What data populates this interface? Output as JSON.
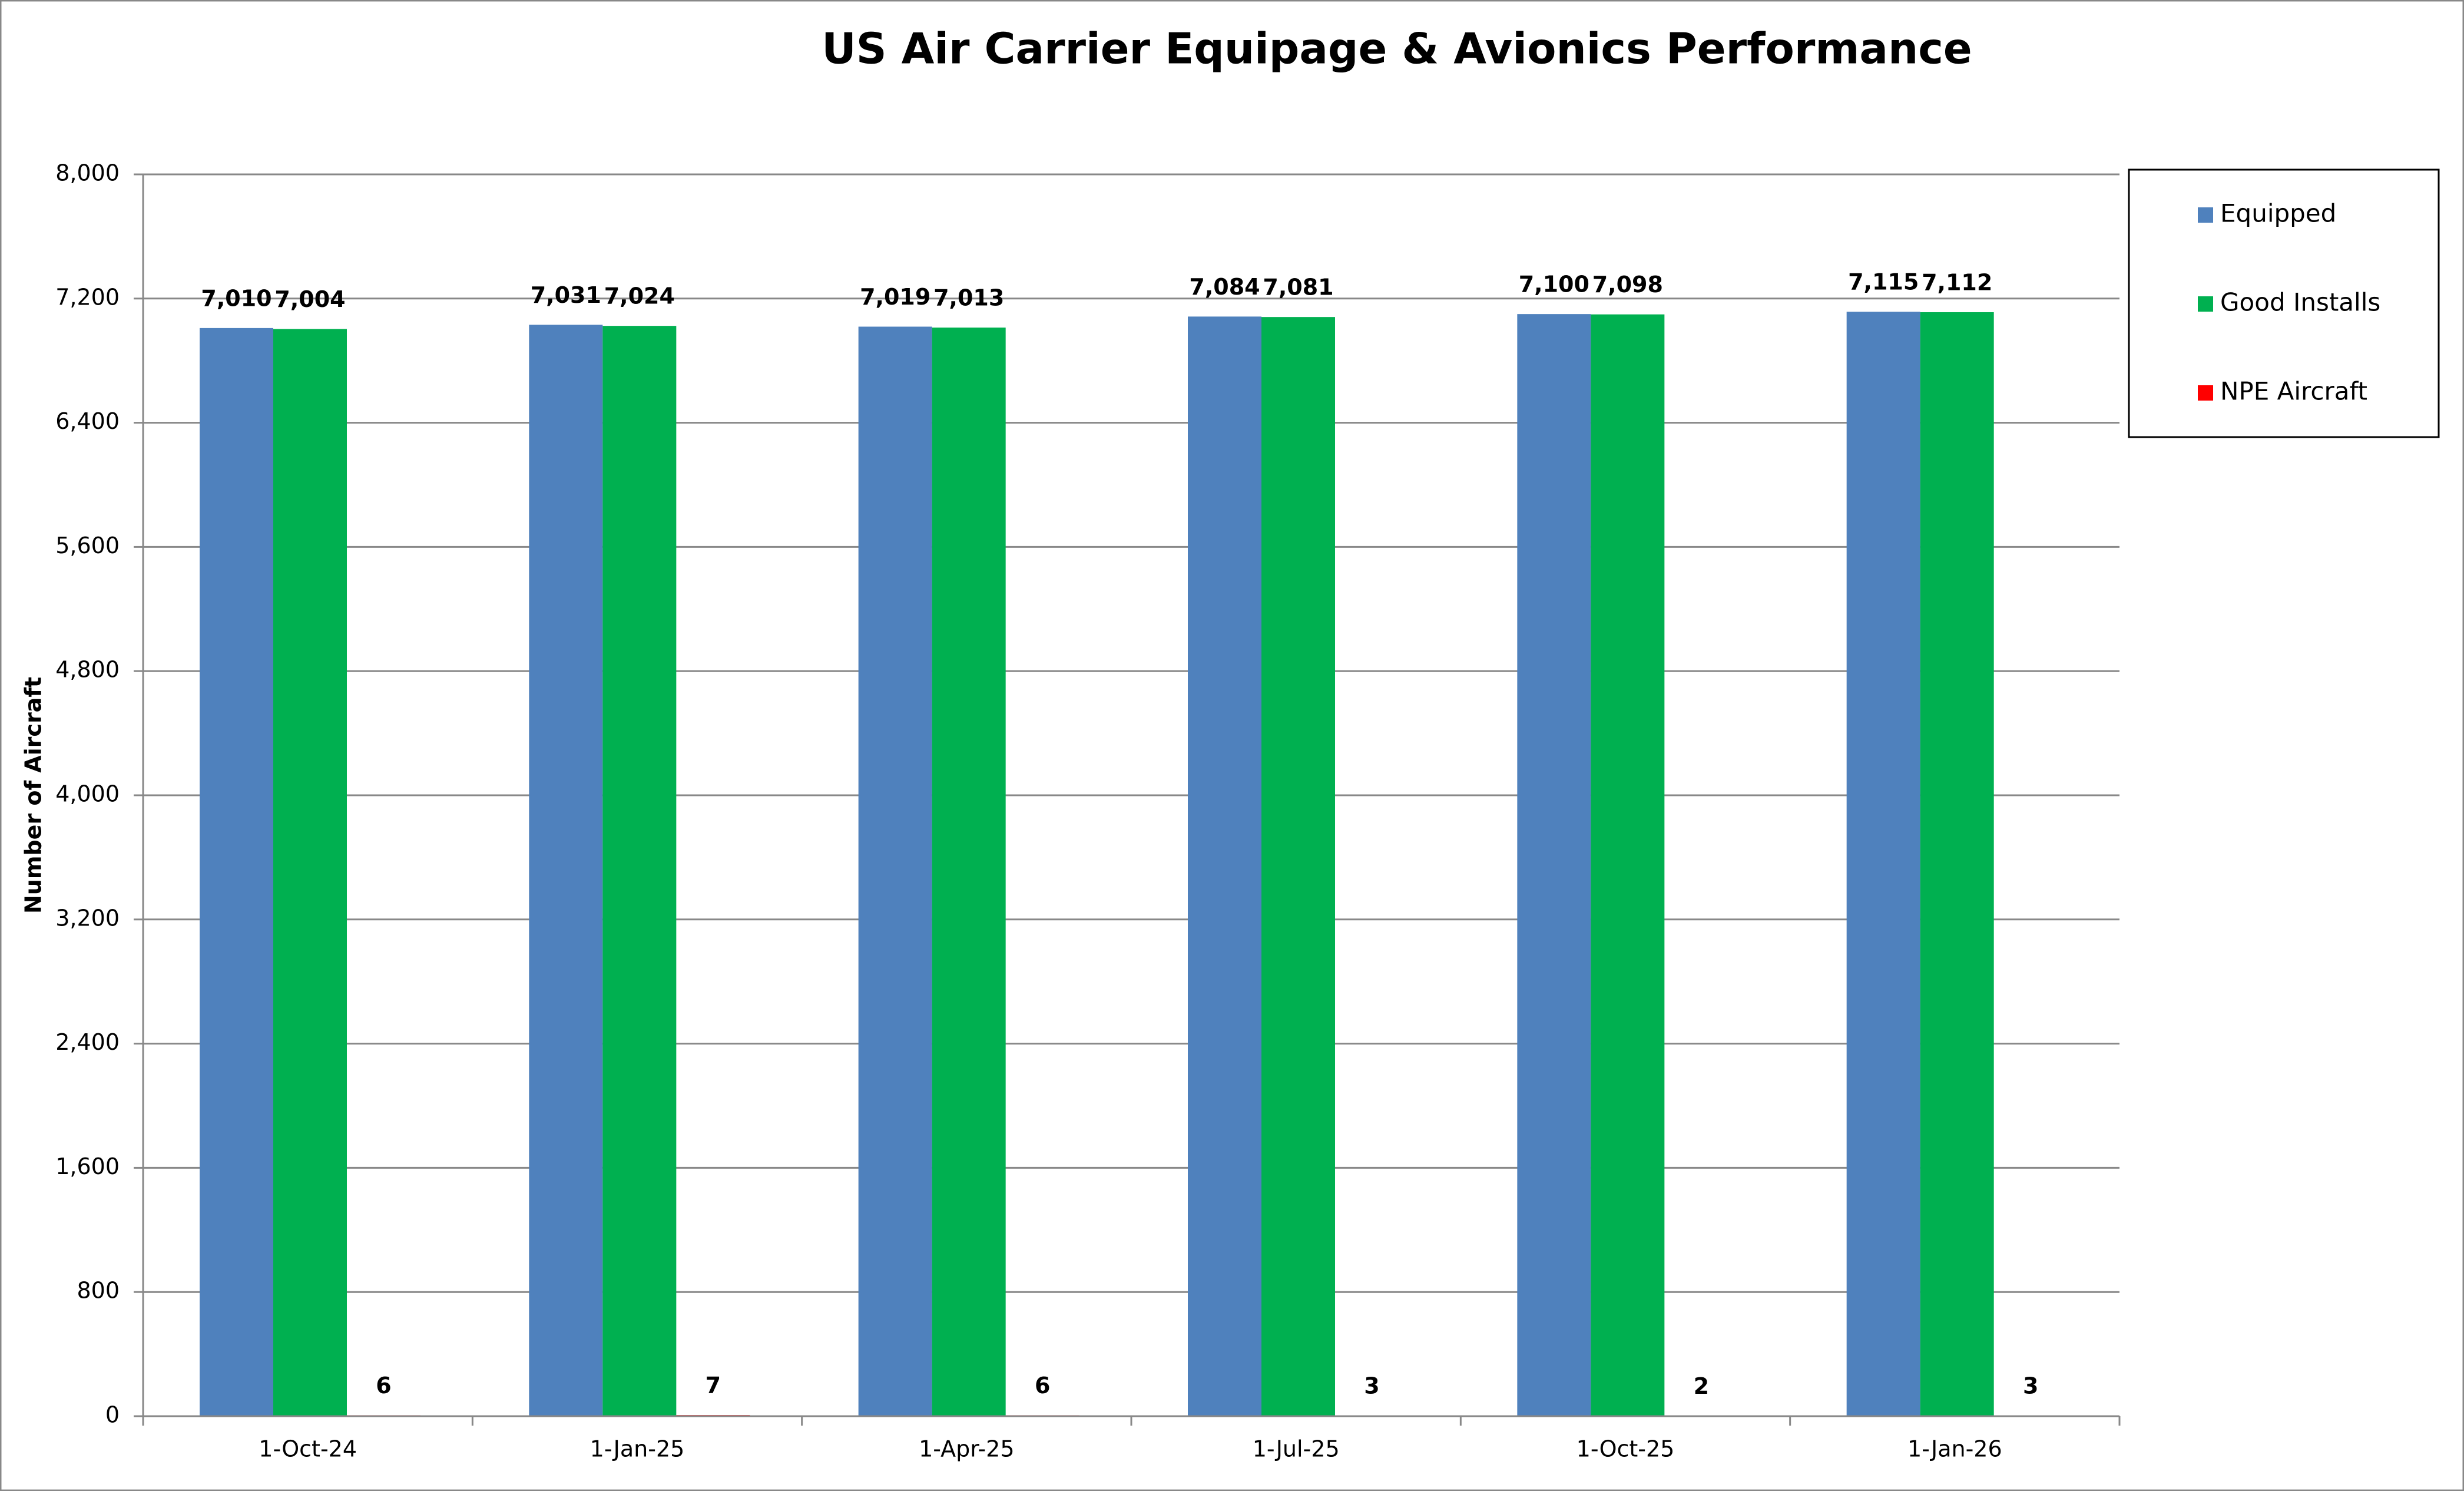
{
  "chart_data": {
    "type": "bar",
    "title": "US Air Carrier Equipage & Avionics Performance",
    "y_label": "Number of Aircraft",
    "categories": [
      "1-Oct-24",
      "1-Jan-25",
      "1-Apr-25",
      "1-Jul-25",
      "1-Oct-25",
      "1-Jan-26"
    ],
    "series": [
      {
        "name": "Equipped",
        "color": "#4f81bd",
        "values": [
          7010,
          7031,
          7019,
          7084,
          7100,
          7115
        ],
        "value_labels": [
          "7,010",
          "7,031",
          "7,019",
          "7,084",
          "7,100",
          "7,115"
        ]
      },
      {
        "name": "Good Installs",
        "color": "#00b050",
        "values": [
          7004,
          7024,
          7013,
          7081,
          7098,
          7112
        ],
        "value_labels": [
          "7,004",
          "7,024",
          "7,013",
          "7,081",
          "7,098",
          "7,112"
        ]
      },
      {
        "name": "NPE Aircraft",
        "color": "#ff0000",
        "values": [
          6,
          7,
          6,
          3,
          2,
          3
        ]
      }
    ],
    "ylim": [
      0,
      8000
    ],
    "yticks": [
      0,
      800,
      {
        "value": 1600,
        "label": "1,600"
      },
      {
        "value": 2400,
        "label": "2,400"
      },
      {
        "value": 3200,
        "label": "3,200"
      },
      {
        "value": 4000,
        "label": "4,000"
      },
      {
        "value": 4800,
        "label": "4,800"
      },
      {
        "value": 5600,
        "label": "5,600"
      },
      {
        "value": 6400,
        "label": "6,400"
      },
      {
        "value": 7200,
        "label": "7,200"
      },
      {
        "value": 8000,
        "label": "8,000"
      }
    ],
    "grid": true,
    "legend": "right"
  }
}
